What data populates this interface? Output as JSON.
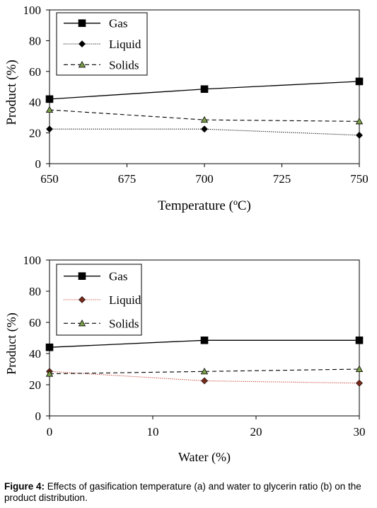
{
  "chart_data": [
    {
      "type": "line",
      "xlabel": "Temperature (ºC)",
      "ylabel": "Product (%)",
      "x": [
        650,
        700,
        750
      ],
      "xticks": [
        "650",
        "675",
        "700",
        "725",
        "750"
      ],
      "xlim": [
        650,
        750
      ],
      "yticks": [
        "0",
        "20",
        "40",
        "60",
        "80",
        "100"
      ],
      "ylim": [
        0,
        100
      ],
      "grid": false,
      "legend": "top-left",
      "series": [
        {
          "name": "Gas",
          "values": [
            42,
            48.5,
            53.5
          ],
          "color": "#000000",
          "line": "solid",
          "marker": "square"
        },
        {
          "name": "Liquid",
          "values": [
            22.5,
            22.5,
            18.5
          ],
          "color": "#000000",
          "line": "dotted",
          "marker": "diamond"
        },
        {
          "name": "Solids",
          "values": [
            35,
            28.5,
            27.5
          ],
          "color": "#000000",
          "marker_fill": "#7ca04a",
          "line": "dashed",
          "marker": "triangle"
        }
      ]
    },
    {
      "type": "line",
      "xlabel": "Water (%)",
      "ylabel": "Product (%)",
      "x": [
        0,
        15,
        30
      ],
      "xticks": [
        "0",
        "10",
        "20",
        "30"
      ],
      "xlim": [
        0,
        30
      ],
      "yticks": [
        "0",
        "20",
        "40",
        "60",
        "80",
        "100"
      ],
      "ylim": [
        0,
        100
      ],
      "grid": false,
      "legend": "top-left",
      "series": [
        {
          "name": "Gas",
          "values": [
            44,
            48.5,
            48.5
          ],
          "color": "#000000",
          "line": "solid",
          "marker": "square"
        },
        {
          "name": "Liquid",
          "values": [
            28.5,
            22.5,
            21
          ],
          "color": "#c0392b",
          "marker_fill": "#7a2a1a",
          "line": "dotted",
          "marker": "diamond"
        },
        {
          "name": "Solids",
          "values": [
            27,
            28.5,
            30
          ],
          "color": "#000000",
          "marker_fill": "#7ca04a",
          "line": "dashed",
          "marker": "triangle"
        }
      ]
    }
  ],
  "caption": {
    "label": "Figure 4:",
    "text": " Effects of gasification temperature (a) and water to glycerin ratio (b) on the product distribution."
  }
}
